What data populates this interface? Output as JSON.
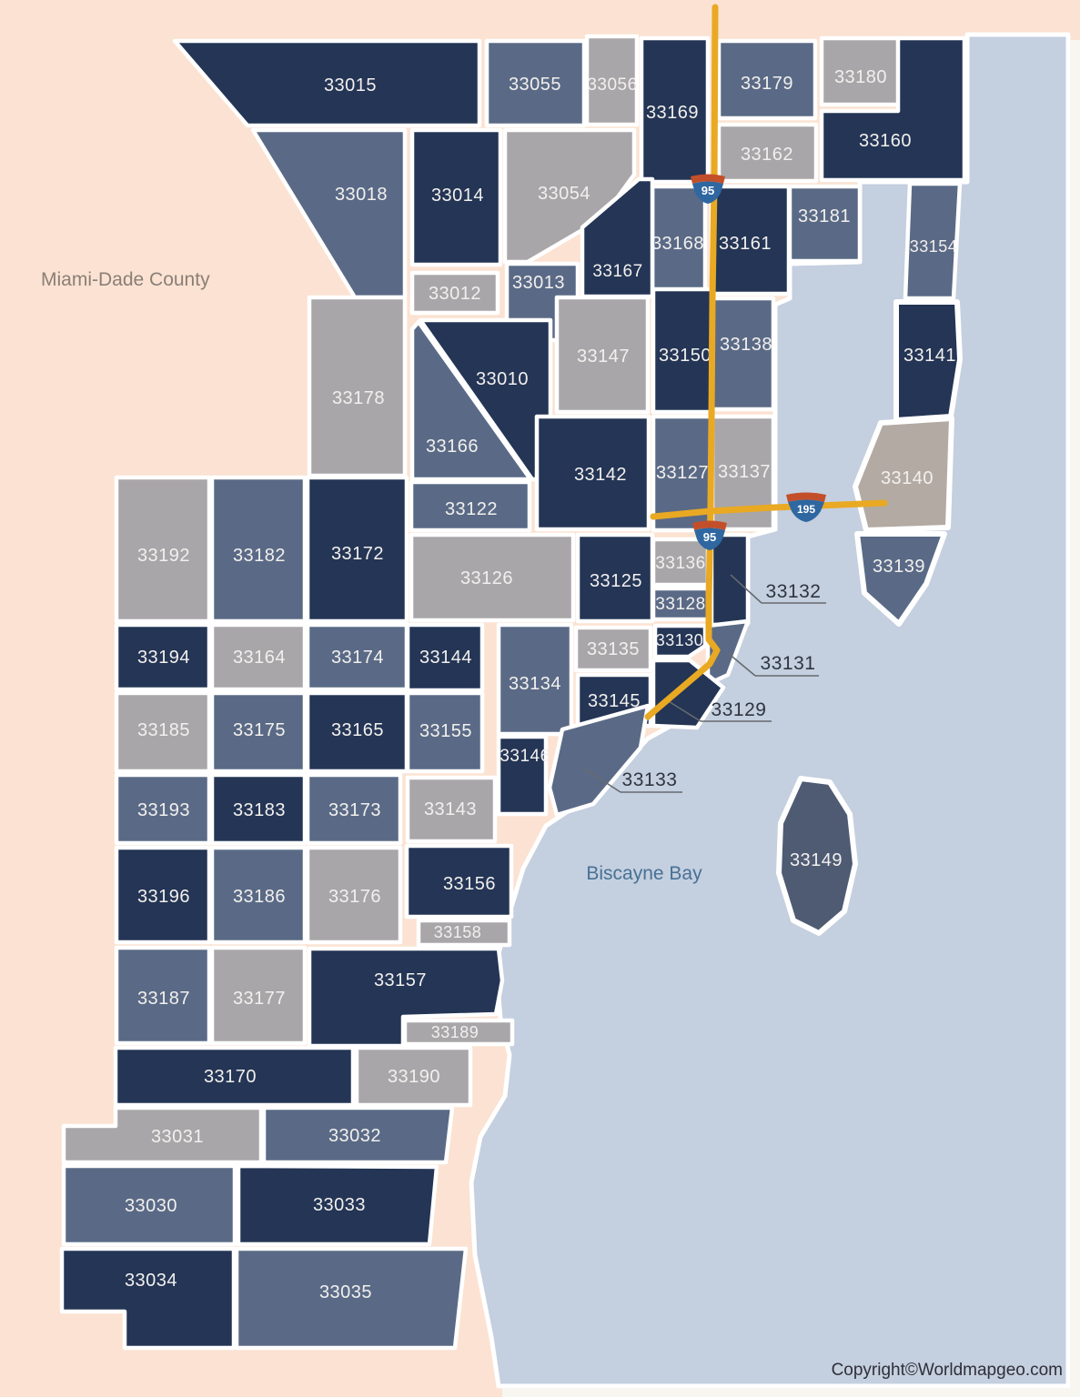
{
  "title": {
    "county_label": "Miami-Dade County",
    "water_label": "Biscayne Bay",
    "copyright": "Copyright©Worldmapgeo.com"
  },
  "colors": {
    "background": "#fbe2d2",
    "page_edge": "#f8f6f0",
    "water": "#c4cfdf",
    "navy": "#243555",
    "slate": "#5a6a86",
    "gray": "#a9a6a9",
    "beige": "#b2aaa3",
    "dark_slate": "#4e5b73",
    "road": "#e9a922",
    "shield_blue": "#2f67a1",
    "shield_red": "#c34f2a",
    "county_label_color": "#8b7f77",
    "water_label_color": "#477195",
    "copyright_color": "#2f2f38"
  },
  "highways": [
    {
      "shield": "95"
    },
    {
      "shield": "95"
    },
    {
      "shield": "195"
    }
  ],
  "zips": [
    {
      "code": "33015",
      "tone": "navy"
    },
    {
      "code": "33055",
      "tone": "slate"
    },
    {
      "code": "33056",
      "tone": "gray"
    },
    {
      "code": "33169",
      "tone": "navy"
    },
    {
      "code": "33179",
      "tone": "slate"
    },
    {
      "code": "33180",
      "tone": "gray"
    },
    {
      "code": "33160",
      "tone": "navy"
    },
    {
      "code": "33162",
      "tone": "gray"
    },
    {
      "code": "33168",
      "tone": "slate"
    },
    {
      "code": "33161",
      "tone": "navy"
    },
    {
      "code": "33181",
      "tone": "slate"
    },
    {
      "code": "33154",
      "tone": "slate"
    },
    {
      "code": "33018",
      "tone": "slate"
    },
    {
      "code": "33014",
      "tone": "navy"
    },
    {
      "code": "33054",
      "tone": "gray"
    },
    {
      "code": "33012",
      "tone": "gray"
    },
    {
      "code": "33013",
      "tone": "slate"
    },
    {
      "code": "33167",
      "tone": "navy"
    },
    {
      "code": "33147",
      "tone": "gray"
    },
    {
      "code": "33150",
      "tone": "navy"
    },
    {
      "code": "33138",
      "tone": "slate"
    },
    {
      "code": "33178",
      "tone": "gray"
    },
    {
      "code": "33010",
      "tone": "navy"
    },
    {
      "code": "33166",
      "tone": "slate"
    },
    {
      "code": "33122",
      "tone": "slate"
    },
    {
      "code": "33142",
      "tone": "navy"
    },
    {
      "code": "33127",
      "tone": "slate"
    },
    {
      "code": "33137",
      "tone": "gray"
    },
    {
      "code": "33141",
      "tone": "navy"
    },
    {
      "code": "33140",
      "tone": "beige"
    },
    {
      "code": "33139",
      "tone": "slate"
    },
    {
      "code": "33192",
      "tone": "gray"
    },
    {
      "code": "33182",
      "tone": "slate"
    },
    {
      "code": "33172",
      "tone": "navy"
    },
    {
      "code": "33126",
      "tone": "gray"
    },
    {
      "code": "33125",
      "tone": "navy"
    },
    {
      "code": "33136",
      "tone": "gray"
    },
    {
      "code": "33132",
      "tone": "navy",
      "callout": true
    },
    {
      "code": "33128",
      "tone": "slate"
    },
    {
      "code": "33130",
      "tone": "navy"
    },
    {
      "code": "33131",
      "tone": "slate",
      "callout": true
    },
    {
      "code": "33135",
      "tone": "gray"
    },
    {
      "code": "33134",
      "tone": "slate"
    },
    {
      "code": "33144",
      "tone": "navy"
    },
    {
      "code": "33194",
      "tone": "navy"
    },
    {
      "code": "33164",
      "tone": "gray"
    },
    {
      "code": "33174",
      "tone": "slate"
    },
    {
      "code": "33145",
      "tone": "navy"
    },
    {
      "code": "33129",
      "tone": "navy",
      "callout": true
    },
    {
      "code": "33185",
      "tone": "gray"
    },
    {
      "code": "33175",
      "tone": "slate"
    },
    {
      "code": "33165",
      "tone": "navy"
    },
    {
      "code": "33155",
      "tone": "slate"
    },
    {
      "code": "33146",
      "tone": "navy"
    },
    {
      "code": "33133",
      "tone": "slate",
      "callout": true
    },
    {
      "code": "33143",
      "tone": "gray"
    },
    {
      "code": "33193",
      "tone": "slate"
    },
    {
      "code": "33183",
      "tone": "navy"
    },
    {
      "code": "33173",
      "tone": "slate"
    },
    {
      "code": "33196",
      "tone": "navy"
    },
    {
      "code": "33186",
      "tone": "slate"
    },
    {
      "code": "33176",
      "tone": "gray"
    },
    {
      "code": "33156",
      "tone": "navy"
    },
    {
      "code": "33158",
      "tone": "gray"
    },
    {
      "code": "33187",
      "tone": "slate"
    },
    {
      "code": "33177",
      "tone": "gray"
    },
    {
      "code": "33157",
      "tone": "navy"
    },
    {
      "code": "33189",
      "tone": "gray"
    },
    {
      "code": "33170",
      "tone": "navy"
    },
    {
      "code": "33190",
      "tone": "gray"
    },
    {
      "code": "33031",
      "tone": "gray"
    },
    {
      "code": "33032",
      "tone": "slate"
    },
    {
      "code": "33030",
      "tone": "slate"
    },
    {
      "code": "33033",
      "tone": "navy"
    },
    {
      "code": "33034",
      "tone": "navy"
    },
    {
      "code": "33035",
      "tone": "slate"
    },
    {
      "code": "33149",
      "tone": "dark_slate"
    }
  ]
}
